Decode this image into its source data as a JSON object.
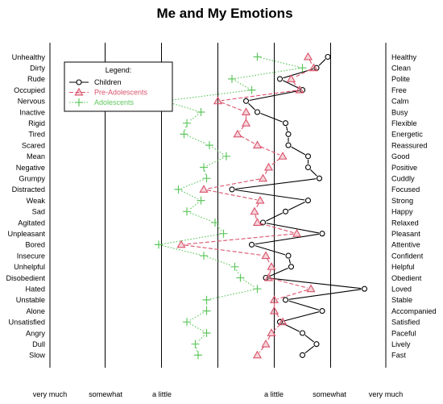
{
  "chart_data": {
    "type": "line",
    "title": "Me and My Emotions",
    "scale_labels": [
      "very much",
      "somewhat",
      "a little",
      "a little",
      "somewhat",
      "very much"
    ],
    "xlim": [
      -3,
      3
    ],
    "left_labels": [
      "Unhealthy",
      "Dirty",
      "Rude",
      "Occupied",
      "Nervous",
      "Inactive",
      "Rigid",
      "Tired",
      "Scared",
      "Mean",
      "Negative",
      "Grumpy",
      "Distracted",
      "Weak",
      "Sad",
      "Agitated",
      "Unpleasant",
      "Bored",
      "Insecure",
      "Unhelpful",
      "Disobedient",
      "Hated",
      "Unstable",
      "Alone",
      "Unsatisfied",
      "Angry",
      "Dull",
      "Slow"
    ],
    "right_labels": [
      "Healthy",
      "Clean",
      "Polite",
      "Free",
      "Calm",
      "Busy",
      "Flexible",
      "Energetic",
      "Reassured",
      "Good",
      "Positive",
      "Cuddly",
      "Focused",
      "Strong",
      "Happy",
      "Relaxed",
      "Pleasant",
      "Attentive",
      "Confident",
      "Helpful",
      "Obedient",
      "Loved",
      "Stable",
      "Accompanied",
      "Satisfied",
      "Paceful",
      "Lively",
      "Fast"
    ],
    "legend": {
      "title": "Legend:",
      "position": "top-left",
      "entries": [
        "Children",
        "Pre-Adolescents",
        "Adolescents"
      ]
    },
    "series": [
      {
        "name": "Children",
        "color": "#000000",
        "marker": "circle",
        "values": [
          1.95,
          1.75,
          1.1,
          1.5,
          0.5,
          0.7,
          1.2,
          1.25,
          1.25,
          1.6,
          1.6,
          1.8,
          0.25,
          1.6,
          1.2,
          0.8,
          1.85,
          0.6,
          1.25,
          1.3,
          0.85,
          2.6,
          1.2,
          1.85,
          1.1,
          1.5,
          1.75,
          1.5
        ]
      },
      {
        "name": "Pre-Adolescents",
        "color": "#d9536b",
        "marker": "triangle",
        "values": [
          1.6,
          1.7,
          1.3,
          1.45,
          0.0,
          0.5,
          0.5,
          0.35,
          0.7,
          1.15,
          0.9,
          0.8,
          -0.25,
          0.75,
          0.65,
          0.7,
          1.4,
          -0.65,
          0.85,
          0.95,
          0.9,
          1.65,
          1.0,
          1.0,
          1.15,
          0.95,
          0.85,
          0.7
        ]
      },
      {
        "name": "Adolescents",
        "color": "#5fc75f",
        "marker": "plus",
        "values": [
          0.7,
          1.5,
          0.25,
          0.6,
          -0.95,
          -0.3,
          -0.55,
          -0.6,
          -0.15,
          0.15,
          -0.25,
          -0.2,
          -0.7,
          -0.3,
          -0.55,
          -0.05,
          0.1,
          -1.05,
          -0.25,
          0.3,
          0.4,
          0.7,
          -0.2,
          -0.2,
          -0.55,
          -0.2,
          -0.4,
          -0.35
        ]
      }
    ]
  }
}
